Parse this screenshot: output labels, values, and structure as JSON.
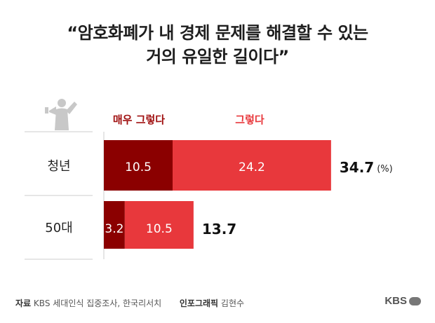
{
  "title_lines": [
    "“암호화폐가 내 경제 문제를 해결할 수 있는",
    "거의 유일한 길이다”"
  ],
  "chart_data": {
    "type": "bar",
    "orientation": "horizontal",
    "stacked": true,
    "categories": [
      "청년",
      "50대"
    ],
    "series": [
      {
        "name": "매우 그렇다",
        "values": [
          10.5,
          3.2
        ],
        "color": "#8b0000"
      },
      {
        "name": "그렇다",
        "values": [
          24.2,
          10.5
        ],
        "color": "#e8383c"
      }
    ],
    "totals": [
      34.7,
      13.7
    ],
    "total_labels": [
      "34.7",
      "13.7"
    ],
    "unit": "(%)",
    "xlim": [
      0,
      36
    ],
    "legend": "top",
    "grid": false
  },
  "footer": {
    "source_label": "자료",
    "source_text": "KBS 세대인식 집중조사, 한국리서치",
    "credit_label": "인포그래픽",
    "credit_text": "김현수"
  },
  "logo_text": "KBS",
  "icon": "person-megaphone-icon"
}
